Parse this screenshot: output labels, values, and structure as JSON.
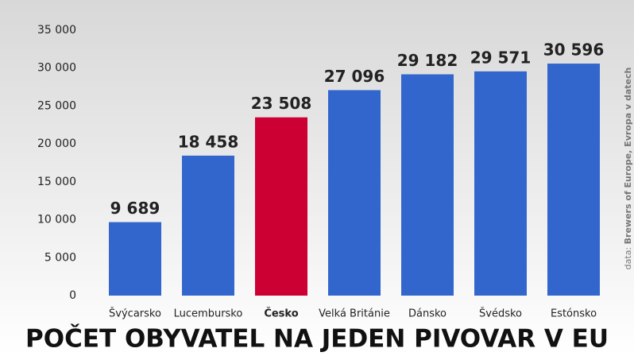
{
  "chart_data": {
    "type": "bar",
    "title": "POČET OBYVATEL NA JEDEN PIVOVAR V EU",
    "source_label": "data:",
    "source": "Brewers of Europe, Evropa v datech",
    "categories": [
      "Švýcarsko",
      "Lucembursko",
      "Česko",
      "Velká Británie",
      "Dánsko",
      "Švédsko",
      "Estónsko"
    ],
    "values": [
      9689,
      18458,
      23508,
      27096,
      29182,
      29571,
      30596
    ],
    "value_labels": [
      "9 689",
      "18 458",
      "23 508",
      "27 096",
      "29 182",
      "29 571",
      "30 596"
    ],
    "color": "#3366cc",
    "colors": [
      "#3366cc",
      "#3366cc",
      "#cc0033",
      "#3366cc",
      "#3366cc",
      "#3366cc",
      "#3366cc"
    ],
    "ylim": [
      0,
      35000
    ],
    "yticks": [
      0,
      {
        "value": 5000,
        "label": "5 000"
      },
      {
        "value": 10000,
        "label": "10 000"
      },
      {
        "value": 15000,
        "label": "15 000"
      },
      {
        "value": 20000,
        "label": "20 000"
      },
      {
        "value": 25000,
        "label": "25 000"
      },
      {
        "value": 30000,
        "label": "30 000"
      },
      {
        "value": 35000,
        "label": "35 000"
      }
    ],
    "grid": false
  }
}
